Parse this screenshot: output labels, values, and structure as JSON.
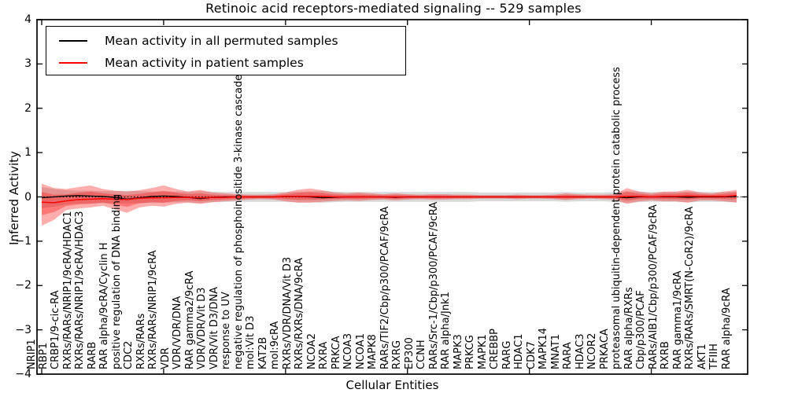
{
  "title": "Retinoic acid receptors-mediated signaling -- 529 samples",
  "legend": {
    "items": [
      {
        "label": "Mean activity in all permuted samples",
        "color": "#000000"
      },
      {
        "label": "Mean activity in patient samples",
        "color": "#ff0000"
      }
    ]
  },
  "axes": {
    "ylabel": "Inferred Activity",
    "xlabel": "Cellular Entities",
    "ytick_values": [
      4,
      3,
      2,
      1,
      0,
      -1,
      -2,
      -3,
      -4
    ],
    "ytick_labels": [
      "4",
      "3",
      "2",
      "1",
      "0",
      "−1",
      "−2",
      "−3",
      "−4"
    ],
    "xtick_indices": [
      0,
      10,
      20,
      30,
      40,
      50
    ]
  },
  "chart_data": {
    "type": "line",
    "title": "Retinoic acid receptors-mediated signaling -- 529 samples",
    "xlabel": "Cellular Entities",
    "ylabel": "Inferred Activity",
    "ylim": [
      -4,
      4
    ],
    "grid": false,
    "legend_position": "upper-left",
    "zero_line": true,
    "categories": [
      "NRIP1",
      "RBP1",
      "CRBP1/9-cic-RA",
      "RXRs/RARs/NRIP1/9cRA/HDAC1",
      "RXRs/RARs/NRIP1/9cRA/HDAC3",
      "RARB",
      "RAR alpha/9cRA/Cyclin H",
      "positive regulation of DNA binding",
      "CDC2",
      "RXRs/RARs",
      "RXRs/RARs/NRIP1/9cRA",
      "VDR",
      "VDR/VDR/DNA",
      "RAR gamma2/9cRA",
      "VDR/VDR/Vit D3",
      "VDR/Vit D3/DNA",
      "response to UV",
      "negative regulation of phosphoinositide 3-kinase cascade",
      "mol:Vit D3",
      "KAT2B",
      "mol:9cRA",
      "RXRs/VDR/DNA/Vit D3",
      "RXRs/RXRs/DNA/9cRA",
      "NCOA2",
      "RXRA",
      "PRKCA",
      "NCOA3",
      "NCOA1",
      "MAPK8",
      "RARs/TIF2/Cbp/p300/PCAF/9cRA",
      "RXRG",
      "EP300",
      "CCNH",
      "RARs/Src-1/Cbp/p300/PCAF/9cRA",
      "RAR alpha/Jnk1",
      "MAPK3",
      "PRKCG",
      "MAPK1",
      "CREBBP",
      "RARG",
      "HDAC1",
      "CDK7",
      "MAPK14",
      "MNAT1",
      "RARA",
      "HDAC3",
      "NCOR2",
      "PRKACA",
      "proteasomal ubiquitin-dependent protein catabolic process",
      "RAR alpha/RXRs",
      "Cbp/p300/PCAF",
      "RARs/AIB1/Cbp/p300/PCAF/9cRA",
      "RXRB",
      "RAR gamma1/9cRA",
      "RXRs/RARs/SMRT(N-CoR2)/9cRA",
      "AKT1",
      "TFIIH",
      "RAR alpha/9cRA"
    ],
    "series": [
      {
        "name": "Mean activity in all permuted samples",
        "color": "#000000",
        "values": [
          -0.02,
          0.0,
          0.02,
          0.03,
          0.02,
          0.01,
          -0.01,
          -0.05,
          -0.02,
          0.01,
          0.02,
          0.01,
          -0.01,
          -0.04,
          -0.01,
          0.0,
          0.0,
          0.0,
          0.0,
          0.0,
          0.01,
          0.01,
          0.0,
          -0.02,
          -0.01,
          0.0,
          0.0,
          0.0,
          0.0,
          -0.01,
          0.0,
          0.0,
          0.0,
          0.0,
          0.0,
          0.0,
          0.0,
          0.0,
          0.0,
          0.0,
          0.0,
          0.0,
          0.0,
          0.0,
          0.0,
          0.0,
          0.0,
          0.0,
          -0.02,
          0.0,
          0.0,
          0.0,
          0.0,
          -0.01,
          0.0,
          0.0,
          0.0,
          0.01
        ]
      },
      {
        "name": "Mean activity in patient samples",
        "color": "#ff0000",
        "values": [
          -0.12,
          -0.13,
          -0.09,
          -0.06,
          -0.05,
          -0.04,
          -0.05,
          -0.06,
          -0.03,
          -0.02,
          -0.02,
          -0.01,
          -0.01,
          -0.02,
          -0.01,
          -0.01,
          0.0,
          0.0,
          0.0,
          0.0,
          0.01,
          0.01,
          0.01,
          0.01,
          0.0,
          0.0,
          0.0,
          0.0,
          0.0,
          0.0,
          0.0,
          0.0,
          0.0,
          0.0,
          0.0,
          0.0,
          0.0,
          0.0,
          0.0,
          0.0,
          0.0,
          0.0,
          0.0,
          0.0,
          0.0,
          0.0,
          0.0,
          0.0,
          0.01,
          0.01,
          0.0,
          0.01,
          0.01,
          0.02,
          0.01,
          0.01,
          0.01,
          0.03
        ]
      }
    ],
    "bands": [
      {
        "name": "patient samples spread",
        "color": "#ff0000",
        "alpha": 0.32,
        "upper": [
          0.3,
          0.2,
          0.18,
          0.22,
          0.26,
          0.18,
          0.14,
          0.12,
          0.15,
          0.2,
          0.26,
          0.18,
          0.12,
          0.16,
          0.1,
          0.08,
          0.06,
          0.05,
          0.05,
          0.06,
          0.1,
          0.16,
          0.19,
          0.15,
          0.1,
          0.08,
          0.1,
          0.08,
          0.06,
          0.08,
          0.06,
          0.05,
          0.06,
          0.06,
          0.05,
          0.05,
          0.04,
          0.04,
          0.04,
          0.05,
          0.04,
          0.04,
          0.05,
          0.08,
          0.06,
          0.05,
          0.05,
          0.06,
          0.2,
          0.12,
          0.08,
          0.12,
          0.12,
          0.16,
          0.1,
          0.08,
          0.12,
          0.16
        ],
        "lower": [
          -0.65,
          -0.52,
          -0.3,
          -0.26,
          -0.24,
          -0.2,
          -0.28,
          -0.36,
          -0.24,
          -0.2,
          -0.22,
          -0.16,
          -0.13,
          -0.16,
          -0.12,
          -0.1,
          -0.08,
          -0.06,
          -0.05,
          -0.06,
          -0.1,
          -0.13,
          -0.13,
          -0.11,
          -0.09,
          -0.08,
          -0.09,
          -0.07,
          -0.06,
          -0.08,
          -0.06,
          -0.05,
          -0.06,
          -0.06,
          -0.05,
          -0.05,
          -0.04,
          -0.04,
          -0.04,
          -0.05,
          -0.04,
          -0.04,
          -0.05,
          -0.07,
          -0.05,
          -0.04,
          -0.05,
          -0.06,
          -0.16,
          -0.1,
          -0.08,
          -0.1,
          -0.1,
          -0.13,
          -0.08,
          -0.08,
          -0.1,
          -0.13
        ]
      },
      {
        "name": "permuted samples spread",
        "color": "#808080",
        "alpha": 0.3,
        "upper": [
          0.22,
          0.18,
          0.15,
          0.14,
          0.14,
          0.13,
          0.13,
          0.14,
          0.13,
          0.12,
          0.12,
          0.12,
          0.12,
          0.13,
          0.12,
          0.11,
          0.11,
          0.11,
          0.11,
          0.11,
          0.11,
          0.12,
          0.12,
          0.13,
          0.12,
          0.11,
          0.11,
          0.11,
          0.11,
          0.11,
          0.11,
          0.11,
          0.11,
          0.11,
          0.11,
          0.11,
          0.1,
          0.1,
          0.1,
          0.1,
          0.1,
          0.1,
          0.1,
          0.11,
          0.1,
          0.1,
          0.1,
          0.11,
          0.13,
          0.12,
          0.11,
          0.11,
          0.11,
          0.12,
          0.11,
          0.11,
          0.11,
          0.12
        ],
        "lower": [
          -0.26,
          -0.22,
          -0.17,
          -0.15,
          -0.15,
          -0.14,
          -0.14,
          -0.15,
          -0.14,
          -0.13,
          -0.13,
          -0.12,
          -0.12,
          -0.14,
          -0.12,
          -0.11,
          -0.11,
          -0.11,
          -0.11,
          -0.11,
          -0.11,
          -0.12,
          -0.12,
          -0.13,
          -0.12,
          -0.11,
          -0.11,
          -0.11,
          -0.11,
          -0.11,
          -0.11,
          -0.11,
          -0.11,
          -0.11,
          -0.11,
          -0.11,
          -0.1,
          -0.1,
          -0.1,
          -0.1,
          -0.1,
          -0.1,
          -0.1,
          -0.11,
          -0.1,
          -0.1,
          -0.1,
          -0.11,
          -0.13,
          -0.12,
          -0.11,
          -0.11,
          -0.11,
          -0.12,
          -0.11,
          -0.11,
          -0.11,
          -0.12
        ]
      }
    ]
  }
}
